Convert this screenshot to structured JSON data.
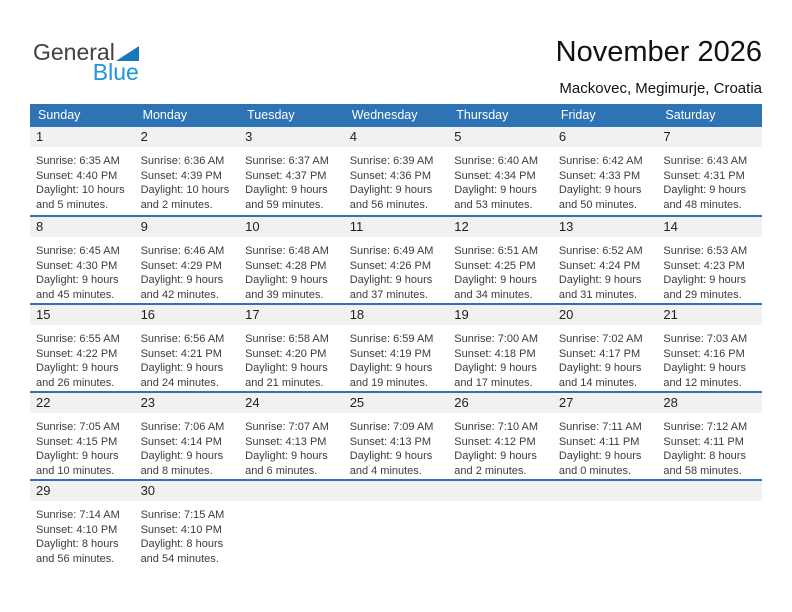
{
  "logo": {
    "part1": "General",
    "part2": "Blue",
    "triangle_icon": "blue-right-triangle"
  },
  "header": {
    "title": "November 2026",
    "location": "Mackovec, Megimurje, Croatia"
  },
  "colors": {
    "header_blue": "#2E74B5",
    "separator_blue": "#2E74B5",
    "band_gray": "#F1F1F1",
    "logo_blue_text": "#2096D3",
    "logo_triangle_blue": "#1878BE",
    "logo_dark_text": "#414042"
  },
  "calendar": {
    "day_headers": [
      "Sunday",
      "Monday",
      "Tuesday",
      "Wednesday",
      "Thursday",
      "Friday",
      "Saturday"
    ],
    "weeks": [
      [
        {
          "day": "1",
          "sunrise": "Sunrise: 6:35 AM",
          "sunset": "Sunset: 4:40 PM",
          "daylight1": "Daylight: 10 hours",
          "daylight2": "and 5 minutes."
        },
        {
          "day": "2",
          "sunrise": "Sunrise: 6:36 AM",
          "sunset": "Sunset: 4:39 PM",
          "daylight1": "Daylight: 10 hours",
          "daylight2": "and 2 minutes."
        },
        {
          "day": "3",
          "sunrise": "Sunrise: 6:37 AM",
          "sunset": "Sunset: 4:37 PM",
          "daylight1": "Daylight: 9 hours",
          "daylight2": "and 59 minutes."
        },
        {
          "day": "4",
          "sunrise": "Sunrise: 6:39 AM",
          "sunset": "Sunset: 4:36 PM",
          "daylight1": "Daylight: 9 hours",
          "daylight2": "and 56 minutes."
        },
        {
          "day": "5",
          "sunrise": "Sunrise: 6:40 AM",
          "sunset": "Sunset: 4:34 PM",
          "daylight1": "Daylight: 9 hours",
          "daylight2": "and 53 minutes."
        },
        {
          "day": "6",
          "sunrise": "Sunrise: 6:42 AM",
          "sunset": "Sunset: 4:33 PM",
          "daylight1": "Daylight: 9 hours",
          "daylight2": "and 50 minutes."
        },
        {
          "day": "7",
          "sunrise": "Sunrise: 6:43 AM",
          "sunset": "Sunset: 4:31 PM",
          "daylight1": "Daylight: 9 hours",
          "daylight2": "and 48 minutes."
        }
      ],
      [
        {
          "day": "8",
          "sunrise": "Sunrise: 6:45 AM",
          "sunset": "Sunset: 4:30 PM",
          "daylight1": "Daylight: 9 hours",
          "daylight2": "and 45 minutes."
        },
        {
          "day": "9",
          "sunrise": "Sunrise: 6:46 AM",
          "sunset": "Sunset: 4:29 PM",
          "daylight1": "Daylight: 9 hours",
          "daylight2": "and 42 minutes."
        },
        {
          "day": "10",
          "sunrise": "Sunrise: 6:48 AM",
          "sunset": "Sunset: 4:28 PM",
          "daylight1": "Daylight: 9 hours",
          "daylight2": "and 39 minutes."
        },
        {
          "day": "11",
          "sunrise": "Sunrise: 6:49 AM",
          "sunset": "Sunset: 4:26 PM",
          "daylight1": "Daylight: 9 hours",
          "daylight2": "and 37 minutes."
        },
        {
          "day": "12",
          "sunrise": "Sunrise: 6:51 AM",
          "sunset": "Sunset: 4:25 PM",
          "daylight1": "Daylight: 9 hours",
          "daylight2": "and 34 minutes."
        },
        {
          "day": "13",
          "sunrise": "Sunrise: 6:52 AM",
          "sunset": "Sunset: 4:24 PM",
          "daylight1": "Daylight: 9 hours",
          "daylight2": "and 31 minutes."
        },
        {
          "day": "14",
          "sunrise": "Sunrise: 6:53 AM",
          "sunset": "Sunset: 4:23 PM",
          "daylight1": "Daylight: 9 hours",
          "daylight2": "and 29 minutes."
        }
      ],
      [
        {
          "day": "15",
          "sunrise": "Sunrise: 6:55 AM",
          "sunset": "Sunset: 4:22 PM",
          "daylight1": "Daylight: 9 hours",
          "daylight2": "and 26 minutes."
        },
        {
          "day": "16",
          "sunrise": "Sunrise: 6:56 AM",
          "sunset": "Sunset: 4:21 PM",
          "daylight1": "Daylight: 9 hours",
          "daylight2": "and 24 minutes."
        },
        {
          "day": "17",
          "sunrise": "Sunrise: 6:58 AM",
          "sunset": "Sunset: 4:20 PM",
          "daylight1": "Daylight: 9 hours",
          "daylight2": "and 21 minutes."
        },
        {
          "day": "18",
          "sunrise": "Sunrise: 6:59 AM",
          "sunset": "Sunset: 4:19 PM",
          "daylight1": "Daylight: 9 hours",
          "daylight2": "and 19 minutes."
        },
        {
          "day": "19",
          "sunrise": "Sunrise: 7:00 AM",
          "sunset": "Sunset: 4:18 PM",
          "daylight1": "Daylight: 9 hours",
          "daylight2": "and 17 minutes."
        },
        {
          "day": "20",
          "sunrise": "Sunrise: 7:02 AM",
          "sunset": "Sunset: 4:17 PM",
          "daylight1": "Daylight: 9 hours",
          "daylight2": "and 14 minutes."
        },
        {
          "day": "21",
          "sunrise": "Sunrise: 7:03 AM",
          "sunset": "Sunset: 4:16 PM",
          "daylight1": "Daylight: 9 hours",
          "daylight2": "and 12 minutes."
        }
      ],
      [
        {
          "day": "22",
          "sunrise": "Sunrise: 7:05 AM",
          "sunset": "Sunset: 4:15 PM",
          "daylight1": "Daylight: 9 hours",
          "daylight2": "and 10 minutes."
        },
        {
          "day": "23",
          "sunrise": "Sunrise: 7:06 AM",
          "sunset": "Sunset: 4:14 PM",
          "daylight1": "Daylight: 9 hours",
          "daylight2": "and 8 minutes."
        },
        {
          "day": "24",
          "sunrise": "Sunrise: 7:07 AM",
          "sunset": "Sunset: 4:13 PM",
          "daylight1": "Daylight: 9 hours",
          "daylight2": "and 6 minutes."
        },
        {
          "day": "25",
          "sunrise": "Sunrise: 7:09 AM",
          "sunset": "Sunset: 4:13 PM",
          "daylight1": "Daylight: 9 hours",
          "daylight2": "and 4 minutes."
        },
        {
          "day": "26",
          "sunrise": "Sunrise: 7:10 AM",
          "sunset": "Sunset: 4:12 PM",
          "daylight1": "Daylight: 9 hours",
          "daylight2": "and 2 minutes."
        },
        {
          "day": "27",
          "sunrise": "Sunrise: 7:11 AM",
          "sunset": "Sunset: 4:11 PM",
          "daylight1": "Daylight: 9 hours",
          "daylight2": "and 0 minutes."
        },
        {
          "day": "28",
          "sunrise": "Sunrise: 7:12 AM",
          "sunset": "Sunset: 4:11 PM",
          "daylight1": "Daylight: 8 hours",
          "daylight2": "and 58 minutes."
        }
      ],
      [
        {
          "day": "29",
          "sunrise": "Sunrise: 7:14 AM",
          "sunset": "Sunset: 4:10 PM",
          "daylight1": "Daylight: 8 hours",
          "daylight2": "and 56 minutes."
        },
        {
          "day": "30",
          "sunrise": "Sunrise: 7:15 AM",
          "sunset": "Sunset: 4:10 PM",
          "daylight1": "Daylight: 8 hours",
          "daylight2": "and 54 minutes."
        },
        null,
        null,
        null,
        null,
        null
      ]
    ]
  }
}
